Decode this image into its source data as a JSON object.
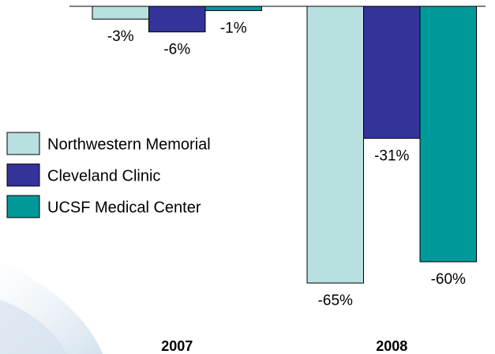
{
  "chart_data": {
    "type": "bar",
    "categories": [
      "2007",
      "2008"
    ],
    "series": [
      {
        "name": "Northwestern Memorial",
        "color": "#b9e0e0",
        "values": [
          -3,
          -65
        ],
        "value_labels": [
          "-3%",
          "-65%"
        ]
      },
      {
        "name": "Cleveland Clinic",
        "color": "#333399",
        "values": [
          -6,
          -31
        ],
        "value_labels": [
          "-6%",
          "-31%"
        ]
      },
      {
        "name": "UCSF Medical Center",
        "color": "#009999",
        "values": [
          -1,
          -60
        ],
        "value_labels": [
          "-1%",
          "-60%"
        ]
      }
    ],
    "ylim": [
      -65,
      0
    ],
    "legend": "left"
  }
}
